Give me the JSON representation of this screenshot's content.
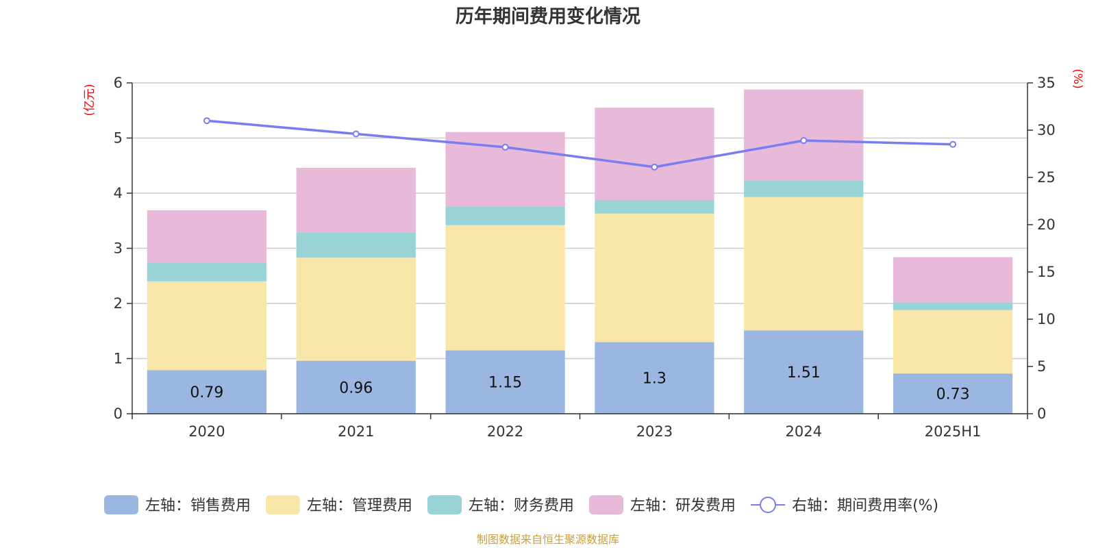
{
  "chart_data": {
    "type": "bar",
    "stacked": true,
    "title": "历年期间费用变化情况",
    "categories": [
      "2020",
      "2021",
      "2022",
      "2023",
      "2024",
      "2025H1"
    ],
    "y_left": {
      "unit": "(亿元)",
      "min": 0,
      "max": 6,
      "ticks": [
        "0",
        "1",
        "2",
        "3",
        "4",
        "5",
        "6"
      ]
    },
    "y_right": {
      "unit": "(%)",
      "min": 0,
      "max": 35,
      "ticks": [
        "0",
        "5",
        "10",
        "15",
        "20",
        "25",
        "30",
        "35"
      ]
    },
    "series": [
      {
        "name": "左轴：销售费用",
        "axis": "left",
        "type": "bar",
        "color": "#9bb7e1",
        "values": [
          0.79,
          0.96,
          1.15,
          1.3,
          1.51,
          0.73
        ],
        "labels": [
          "0.79",
          "0.96",
          "1.15",
          "1.3",
          "1.51",
          "0.73"
        ]
      },
      {
        "name": "左轴：管理费用",
        "axis": "left",
        "type": "bar",
        "color": "#f8e7a8",
        "values": [
          1.61,
          1.87,
          2.27,
          2.33,
          2.42,
          1.15
        ]
      },
      {
        "name": "左轴：财务费用",
        "axis": "left",
        "type": "bar",
        "color": "#98d4d5",
        "values": [
          0.34,
          0.46,
          0.34,
          0.24,
          0.3,
          0.14
        ]
      },
      {
        "name": "左轴：研发费用",
        "axis": "left",
        "type": "bar",
        "color": "#e8b9d9",
        "values": [
          0.95,
          1.17,
          1.35,
          1.68,
          1.65,
          0.82
        ]
      },
      {
        "name": "右轴：期间费用率(%)",
        "axis": "right",
        "type": "line",
        "color": "#7a7cf0",
        "values": [
          31.0,
          29.6,
          28.2,
          26.1,
          28.9,
          28.5
        ]
      }
    ],
    "grid": true,
    "legend_position": "bottom"
  },
  "source_note": "制图数据来自恒生聚源数据库",
  "colors": {
    "axis_unit": "#ff0000",
    "source": "#c8a040",
    "grid": "#cccccc",
    "axis_line": "#333333"
  }
}
